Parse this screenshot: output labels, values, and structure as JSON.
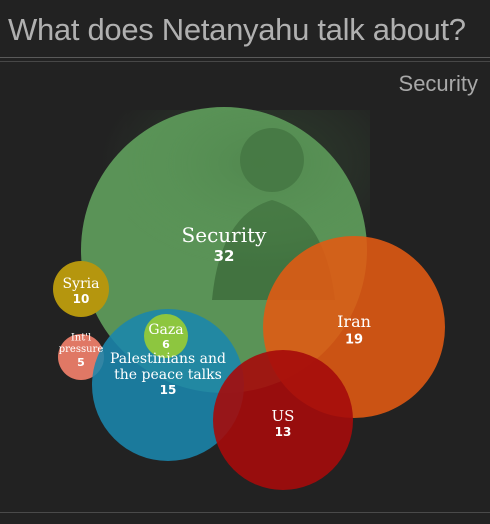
{
  "header": {
    "title": "What does Netanyahu talk about?",
    "selected_topic": "Security"
  },
  "chart_data": {
    "type": "bubble",
    "title": "What does Netanyahu talk about?",
    "subtitle": "Security",
    "points": [
      {
        "label": "Security",
        "value": 32,
        "color": "#5f9d5c"
      },
      {
        "label": "Iran",
        "value": 19,
        "color": "#e25a12"
      },
      {
        "label": "Palestinians and the peace talks",
        "value": 15,
        "color": "#1a86ad"
      },
      {
        "label": "US",
        "value": 13,
        "color": "#a50b0b"
      },
      {
        "label": "Syria",
        "value": 10,
        "color": "#b5960e"
      },
      {
        "label": "Gaza",
        "value": 6,
        "color": "#8dc63f"
      },
      {
        "label": "Int'l pressure",
        "value": 5,
        "color": "#e07865"
      }
    ]
  }
}
